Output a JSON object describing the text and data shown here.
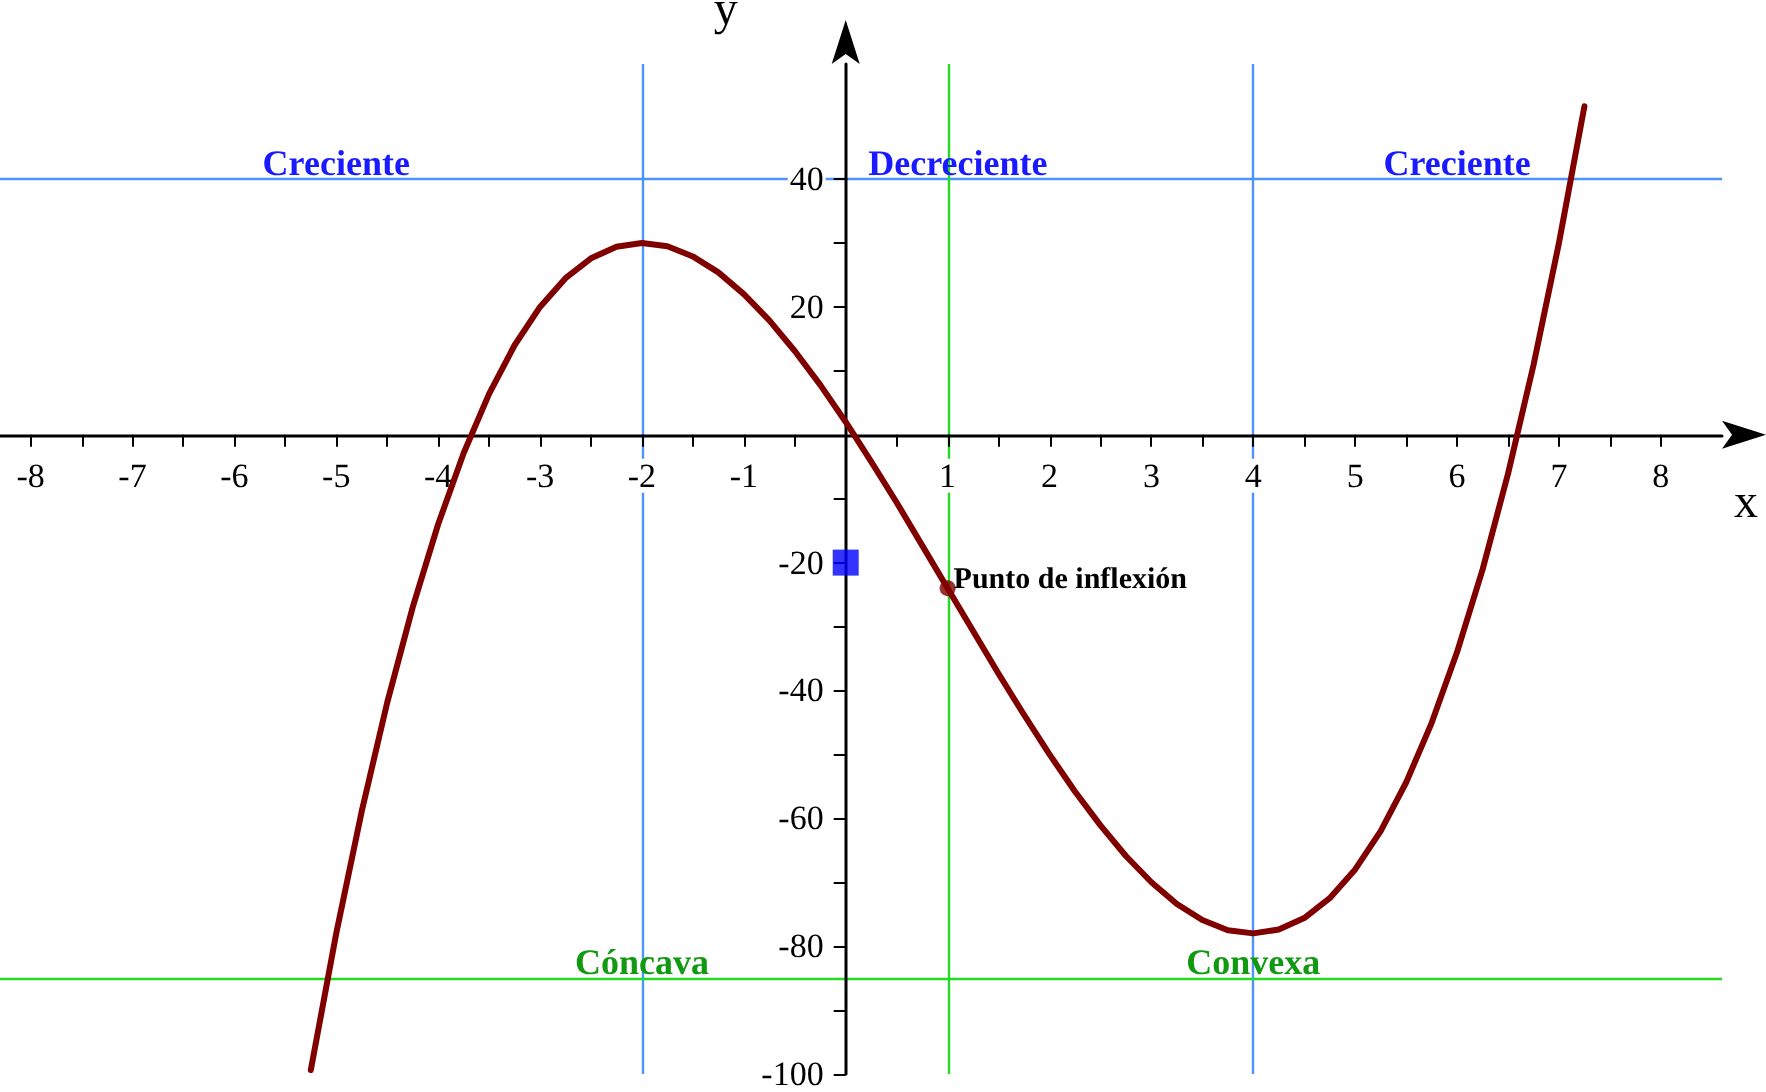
{
  "chart_data": {
    "type": "line",
    "xlabel": "x",
    "ylabel": "y",
    "xlim": [
      -8.3,
      8.6
    ],
    "ylim": [
      -100,
      58
    ],
    "xticks": [
      -8,
      {
        "value": -7.5,
        "label": null
      },
      -7,
      {
        "value": -6.5,
        "label": null
      },
      -6,
      {
        "value": -5.5,
        "label": null
      },
      -5,
      {
        "value": -4.5,
        "label": null
      },
      -4,
      {
        "value": -3.5,
        "label": null
      },
      -3,
      {
        "value": -2.5,
        "label": null
      },
      -2,
      {
        "value": -1.5,
        "label": null
      },
      -1,
      {
        "value": -0.5,
        "label": null
      },
      {
        "value": 0.5,
        "label": null
      },
      1,
      {
        "value": 1.5,
        "label": null
      },
      2,
      {
        "value": 2.5,
        "label": null
      },
      3,
      {
        "value": 3.5,
        "label": null
      },
      4,
      {
        "value": 4.5,
        "label": null
      },
      5,
      {
        "value": 5.5,
        "label": null
      },
      6,
      {
        "value": 6.5,
        "label": null
      },
      7,
      {
        "value": 7.5,
        "label": null
      },
      8
    ],
    "yticks": [
      -100,
      {
        "value": -90,
        "label": null
      },
      -80,
      {
        "value": -70,
        "label": null
      },
      -60,
      {
        "value": -50,
        "label": null
      },
      -40,
      {
        "value": -30,
        "label": null
      },
      -20,
      {
        "value": -10,
        "label": null
      },
      {
        "value": 10,
        "label": null
      },
      20,
      {
        "value": 30,
        "label": null
      },
      40
    ],
    "grid": false,
    "series": [
      {
        "type": "line",
        "color": "#800000",
        "marker": "none",
        "line_style": "solid",
        "x": [
          -5.25,
          -5,
          -4.75,
          -4.5,
          -4.25,
          -4,
          -3.75,
          -3.5,
          -3.25,
          -3,
          -2.75,
          -2.5,
          -2.25,
          -2,
          -1.75,
          -1.5,
          -1.25,
          -1,
          -0.75,
          -0.5,
          -0.25,
          0,
          0.25,
          0.5,
          0.75,
          1,
          1.25,
          1.5,
          1.75,
          2,
          2.25,
          2.5,
          2.75,
          3,
          3.25,
          3.5,
          3.75,
          4,
          4.25,
          4.5,
          4.75,
          5,
          5.25,
          5.5,
          5.75,
          6,
          6.25,
          6.5,
          6.75,
          7,
          7.25
        ],
        "values": [
          -99.4,
          -78,
          -58.9,
          -41.9,
          -27,
          -14,
          -2.9,
          6.4,
          14,
          20,
          24.5,
          27.6,
          29.4,
          30,
          29.5,
          27.9,
          25.4,
          22,
          17.9,
          13.1,
          7.8,
          2,
          -4.2,
          -10.6,
          -17.3,
          -24,
          -30.7,
          -37.4,
          -43.8,
          -50,
          -55.8,
          -61.1,
          -65.9,
          -70,
          -73.4,
          -75.9,
          -77.5,
          -78,
          -77.4,
          -75.6,
          -72.5,
          -68,
          -62,
          -54.4,
          -45.1,
          -34,
          -21.1,
          -6.1,
          10.9,
          30,
          51.4
        ]
      },
      {
        "type": "scatter",
        "color": "#800000",
        "marker": "circle",
        "x": [
          1
        ],
        "values": [
          -24
        ]
      },
      {
        "type": "scatter",
        "color": "#0000ff",
        "marker": "square",
        "x": [
          0
        ],
        "values": [
          -20
        ]
      }
    ],
    "ref_lines": [
      {
        "axis": "x",
        "value": -2,
        "color": "#4d94ff"
      },
      {
        "axis": "x",
        "value": 4,
        "color": "#4d94ff"
      },
      {
        "axis": "y",
        "value": 40,
        "color": "#4d94ff"
      },
      {
        "axis": "x",
        "value": 1,
        "color": "#22dd22"
      },
      {
        "axis": "y",
        "value": -85,
        "color": "#22dd22"
      }
    ],
    "annotations": [
      {
        "text": "Creciente",
        "x": -5,
        "y": 40
      },
      {
        "text": "Decreciente",
        "x": 1.1,
        "y": 40
      },
      {
        "text": "Creciente",
        "x": 6,
        "y": 40
      },
      {
        "text": "Cóncava",
        "x": -2,
        "y": -85
      },
      {
        "text": "Convexa",
        "x": 4,
        "y": -85
      },
      {
        "text": "Punto de inflexión",
        "x": 1,
        "y": -24
      }
    ]
  }
}
